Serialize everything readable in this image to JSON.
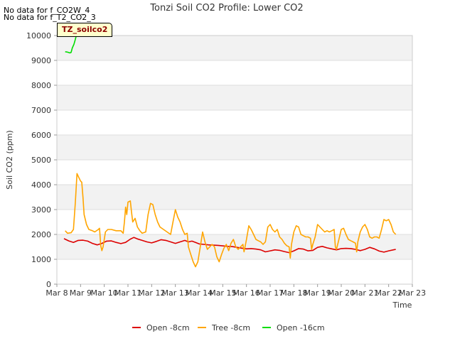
{
  "notes": [
    "No data for f_CO2W_4",
    "No data for f_T2_CO2_3"
  ],
  "tag_label": "TZ_soilco2",
  "chart_data": {
    "type": "line",
    "title": "Tonzi Soil CO2 Profile: Lower CO2",
    "xlabel": "Time",
    "ylabel": "Soil CO2 (ppm)",
    "ylim": [
      0,
      10000
    ],
    "xlim": [
      8,
      23
    ],
    "yticks": [
      0,
      1000,
      2000,
      3000,
      4000,
      5000,
      6000,
      7000,
      8000,
      9000,
      10000
    ],
    "xticks": [
      {
        "value": 8,
        "label": "Mar 8"
      },
      {
        "value": 9,
        "label": "Mar 9"
      },
      {
        "value": 10,
        "label": "Mar 10"
      },
      {
        "value": 11,
        "label": "Mar 11"
      },
      {
        "value": 12,
        "label": "Mar 12"
      },
      {
        "value": 13,
        "label": "Mar 13"
      },
      {
        "value": 14,
        "label": "Mar 14"
      },
      {
        "value": 15,
        "label": "Mar 15"
      },
      {
        "value": 16,
        "label": "Mar 16"
      },
      {
        "value": 17,
        "label": "Mar 17"
      },
      {
        "value": 18,
        "label": "Mar 18"
      },
      {
        "value": 19,
        "label": "Mar 19"
      },
      {
        "value": 20,
        "label": "Mar 20"
      },
      {
        "value": 21,
        "label": "Mar 21"
      },
      {
        "value": 22,
        "label": "Mar 22"
      },
      {
        "value": 23,
        "label": "Mar 23"
      }
    ],
    "legend_position": "bottom",
    "series": [
      {
        "name": "Open -8cm",
        "color": "#dd0000",
        "points": [
          [
            8.3,
            1830
          ],
          [
            8.5,
            1740
          ],
          [
            8.7,
            1680
          ],
          [
            8.9,
            1760
          ],
          [
            9.1,
            1770
          ],
          [
            9.3,
            1730
          ],
          [
            9.5,
            1640
          ],
          [
            9.7,
            1580
          ],
          [
            9.9,
            1640
          ],
          [
            10.1,
            1730
          ],
          [
            10.3,
            1740
          ],
          [
            10.5,
            1680
          ],
          [
            10.7,
            1630
          ],
          [
            10.9,
            1680
          ],
          [
            11.1,
            1810
          ],
          [
            11.25,
            1880
          ],
          [
            11.4,
            1820
          ],
          [
            11.6,
            1760
          ],
          [
            11.8,
            1700
          ],
          [
            12.0,
            1660
          ],
          [
            12.2,
            1720
          ],
          [
            12.4,
            1790
          ],
          [
            12.6,
            1760
          ],
          [
            12.8,
            1700
          ],
          [
            13.0,
            1640
          ],
          [
            13.2,
            1700
          ],
          [
            13.4,
            1760
          ],
          [
            13.55,
            1700
          ],
          [
            13.7,
            1730
          ],
          [
            13.85,
            1680
          ],
          [
            14.0,
            1620
          ],
          [
            14.2,
            1600
          ],
          [
            14.4,
            1580
          ],
          [
            14.6,
            1570
          ],
          [
            14.8,
            1560
          ],
          [
            15.0,
            1540
          ],
          [
            15.2,
            1520
          ],
          [
            15.4,
            1510
          ],
          [
            15.6,
            1480
          ],
          [
            15.8,
            1450
          ],
          [
            16.0,
            1420
          ],
          [
            16.2,
            1430
          ],
          [
            16.4,
            1410
          ],
          [
            16.6,
            1380
          ],
          [
            16.8,
            1300
          ],
          [
            17.0,
            1340
          ],
          [
            17.2,
            1380
          ],
          [
            17.4,
            1360
          ],
          [
            17.6,
            1310
          ],
          [
            17.8,
            1270
          ],
          [
            18.0,
            1340
          ],
          [
            18.2,
            1430
          ],
          [
            18.4,
            1410
          ],
          [
            18.6,
            1340
          ],
          [
            18.8,
            1360
          ],
          [
            19.0,
            1480
          ],
          [
            19.2,
            1520
          ],
          [
            19.4,
            1460
          ],
          [
            19.6,
            1420
          ],
          [
            19.8,
            1380
          ],
          [
            20.0,
            1430
          ],
          [
            20.2,
            1440
          ],
          [
            20.4,
            1430
          ],
          [
            20.6,
            1400
          ],
          [
            20.8,
            1350
          ],
          [
            21.0,
            1400
          ],
          [
            21.2,
            1480
          ],
          [
            21.4,
            1420
          ],
          [
            21.6,
            1330
          ],
          [
            21.8,
            1290
          ],
          [
            22.0,
            1340
          ],
          [
            22.2,
            1380
          ],
          [
            22.3,
            1400
          ]
        ]
      },
      {
        "name": "Tree -8cm",
        "color": "#ffa500",
        "points": [
          [
            8.35,
            2150
          ],
          [
            8.45,
            2050
          ],
          [
            8.6,
            2070
          ],
          [
            8.7,
            2200
          ],
          [
            8.78,
            3300
          ],
          [
            8.85,
            4450
          ],
          [
            8.92,
            4300
          ],
          [
            9.0,
            4150
          ],
          [
            9.05,
            4100
          ],
          [
            9.1,
            3500
          ],
          [
            9.15,
            2800
          ],
          [
            9.25,
            2400
          ],
          [
            9.35,
            2200
          ],
          [
            9.5,
            2150
          ],
          [
            9.6,
            2100
          ],
          [
            9.75,
            2200
          ],
          [
            9.8,
            2250
          ],
          [
            9.85,
            1550
          ],
          [
            9.9,
            1350
          ],
          [
            9.95,
            1500
          ],
          [
            10.05,
            2100
          ],
          [
            10.15,
            2200
          ],
          [
            10.3,
            2200
          ],
          [
            10.5,
            2150
          ],
          [
            10.7,
            2150
          ],
          [
            10.8,
            2050
          ],
          [
            10.85,
            2500
          ],
          [
            10.9,
            3100
          ],
          [
            10.95,
            2800
          ],
          [
            11.0,
            3300
          ],
          [
            11.1,
            3350
          ],
          [
            11.15,
            2900
          ],
          [
            11.2,
            2500
          ],
          [
            11.3,
            2650
          ],
          [
            11.4,
            2300
          ],
          [
            11.5,
            2150
          ],
          [
            11.6,
            2050
          ],
          [
            11.75,
            2100
          ],
          [
            11.85,
            2800
          ],
          [
            11.95,
            3250
          ],
          [
            12.05,
            3200
          ],
          [
            12.15,
            2800
          ],
          [
            12.25,
            2500
          ],
          [
            12.35,
            2300
          ],
          [
            12.5,
            2200
          ],
          [
            12.65,
            2100
          ],
          [
            12.8,
            2000
          ],
          [
            12.9,
            2500
          ],
          [
            13.0,
            3000
          ],
          [
            13.1,
            2700
          ],
          [
            13.2,
            2500
          ],
          [
            13.3,
            2200
          ],
          [
            13.4,
            2000
          ],
          [
            13.5,
            2050
          ],
          [
            13.55,
            1500
          ],
          [
            13.65,
            1200
          ],
          [
            13.75,
            900
          ],
          [
            13.85,
            700
          ],
          [
            13.95,
            900
          ],
          [
            14.05,
            1500
          ],
          [
            14.15,
            2100
          ],
          [
            14.25,
            1700
          ],
          [
            14.35,
            1400
          ],
          [
            14.45,
            1500
          ],
          [
            14.55,
            1600
          ],
          [
            14.65,
            1500
          ],
          [
            14.75,
            1100
          ],
          [
            14.85,
            900
          ],
          [
            14.95,
            1200
          ],
          [
            15.05,
            1450
          ],
          [
            15.15,
            1600
          ],
          [
            15.25,
            1350
          ],
          [
            15.35,
            1650
          ],
          [
            15.45,
            1800
          ],
          [
            15.55,
            1500
          ],
          [
            15.65,
            1400
          ],
          [
            15.75,
            1500
          ],
          [
            15.85,
            1600
          ],
          [
            15.9,
            1300
          ],
          [
            16.0,
            1800
          ],
          [
            16.1,
            2350
          ],
          [
            16.2,
            2200
          ],
          [
            16.3,
            2000
          ],
          [
            16.4,
            1800
          ],
          [
            16.5,
            1750
          ],
          [
            16.6,
            1700
          ],
          [
            16.7,
            1600
          ],
          [
            16.8,
            1700
          ],
          [
            16.9,
            2300
          ],
          [
            17.0,
            2400
          ],
          [
            17.1,
            2200
          ],
          [
            17.2,
            2100
          ],
          [
            17.3,
            2200
          ],
          [
            17.4,
            1900
          ],
          [
            17.5,
            1800
          ],
          [
            17.6,
            1650
          ],
          [
            17.7,
            1550
          ],
          [
            17.8,
            1500
          ],
          [
            17.85,
            1050
          ],
          [
            17.9,
            1600
          ],
          [
            18.0,
            2100
          ],
          [
            18.1,
            2350
          ],
          [
            18.2,
            2300
          ],
          [
            18.3,
            2000
          ],
          [
            18.4,
            1950
          ],
          [
            18.5,
            1900
          ],
          [
            18.6,
            1900
          ],
          [
            18.7,
            1850
          ],
          [
            18.75,
            1400
          ],
          [
            18.8,
            1600
          ],
          [
            18.9,
            1900
          ],
          [
            19.0,
            2400
          ],
          [
            19.1,
            2300
          ],
          [
            19.2,
            2200
          ],
          [
            19.3,
            2100
          ],
          [
            19.4,
            2150
          ],
          [
            19.5,
            2100
          ],
          [
            19.6,
            2150
          ],
          [
            19.7,
            2200
          ],
          [
            19.75,
            1500
          ],
          [
            19.8,
            1400
          ],
          [
            19.9,
            1800
          ],
          [
            20.0,
            2200
          ],
          [
            20.1,
            2250
          ],
          [
            20.2,
            2000
          ],
          [
            20.3,
            1800
          ],
          [
            20.4,
            1750
          ],
          [
            20.5,
            1700
          ],
          [
            20.6,
            1650
          ],
          [
            20.65,
            1300
          ],
          [
            20.7,
            1700
          ],
          [
            20.8,
            2100
          ],
          [
            20.9,
            2300
          ],
          [
            21.0,
            2400
          ],
          [
            21.1,
            2200
          ],
          [
            21.2,
            1900
          ],
          [
            21.3,
            1850
          ],
          [
            21.4,
            1900
          ],
          [
            21.5,
            1900
          ],
          [
            21.6,
            1850
          ],
          [
            21.7,
            2200
          ],
          [
            21.8,
            2600
          ],
          [
            21.9,
            2550
          ],
          [
            22.0,
            2600
          ],
          [
            22.1,
            2400
          ],
          [
            22.2,
            2100
          ],
          [
            22.3,
            2000
          ]
        ]
      },
      {
        "name": "Open -16cm",
        "color": "#00dd00",
        "points": [
          [
            8.35,
            9350
          ],
          [
            8.45,
            9330
          ],
          [
            8.55,
            9300
          ],
          [
            8.6,
            9320
          ],
          [
            8.65,
            9500
          ],
          [
            8.72,
            9650
          ],
          [
            8.78,
            9850
          ],
          [
            8.82,
            10000
          ]
        ]
      }
    ]
  }
}
